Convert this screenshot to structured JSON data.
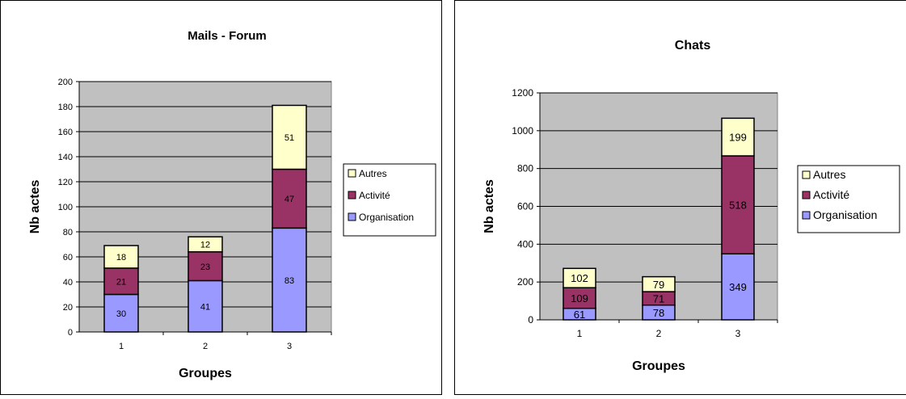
{
  "chart_data": [
    {
      "type": "bar",
      "stacked": true,
      "title": "Mails - Forum",
      "xlabel": "Groupes",
      "ylabel": "Nb actes",
      "categories": [
        "1",
        "2",
        "3"
      ],
      "ylim": [
        0,
        200
      ],
      "ytick_step": 20,
      "grid": true,
      "legend_position": "right",
      "series": [
        {
          "name": "Organisation",
          "values": [
            30,
            41,
            83
          ],
          "color": "#9999ff"
        },
        {
          "name": "Activité",
          "values": [
            21,
            23,
            47
          ],
          "color": "#993366"
        },
        {
          "name": "Autres",
          "values": [
            18,
            12,
            51
          ],
          "color": "#ffffcc"
        }
      ],
      "data_labels": [
        [
          "30",
          "41",
          "83"
        ],
        [
          "21",
          "23",
          "47"
        ],
        [
          "18",
          "12",
          "51"
        ]
      ],
      "plot_background": "#c0c0c0"
    },
    {
      "type": "bar",
      "stacked": true,
      "title": "Chats",
      "xlabel": "Groupes",
      "ylabel": "Nb actes",
      "categories": [
        "1",
        "2",
        "3"
      ],
      "ylim": [
        0,
        1200
      ],
      "ytick_step": 200,
      "grid": true,
      "legend_position": "right",
      "series": [
        {
          "name": "Organisation",
          "values": [
            61,
            78,
            349
          ],
          "color": "#9999ff"
        },
        {
          "name": "Activité",
          "values": [
            109,
            71,
            518
          ],
          "color": "#993366"
        },
        {
          "name": "Autres",
          "values": [
            102,
            79,
            199
          ],
          "color": "#ffffcc"
        }
      ],
      "data_labels": [
        [
          "61",
          "78",
          "349"
        ],
        [
          "109",
          "71",
          "518"
        ],
        [
          "102",
          "79",
          "199"
        ]
      ],
      "plot_background": "#c0c0c0"
    }
  ]
}
